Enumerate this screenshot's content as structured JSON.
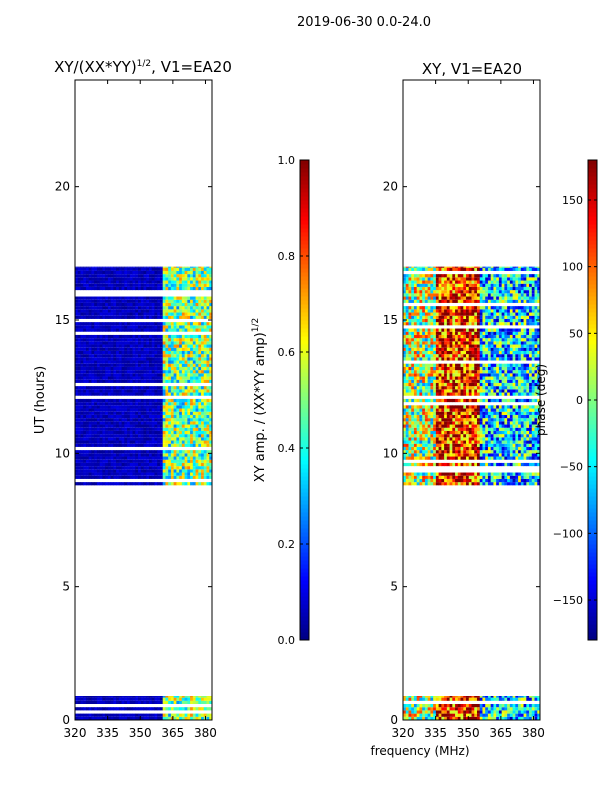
{
  "suptitle": "2019-06-30 0.0-24.0",
  "colors": {
    "axis": "#000000",
    "background": "#ffffff"
  },
  "chart_data": [
    {
      "type": "heatmap",
      "title_main": "XY/(XX*YY)",
      "title_sup": "1/2",
      "title_tail": ", V1=EA20",
      "ylabel": "UT (hours)",
      "xlabel": "",
      "xlim": [
        320,
        383
      ],
      "ylim": [
        0,
        24
      ],
      "xticks": [
        320,
        335,
        350,
        365,
        380
      ],
      "xtick_labels": [
        "320",
        "335",
        "350",
        "365",
        "380"
      ],
      "yticks": [
        0,
        5,
        10,
        15,
        20
      ],
      "ytick_labels": [
        "0",
        "5",
        "10",
        "15",
        "20"
      ],
      "colormap": "jet",
      "data_blocks_ut": [
        [
          0.0,
          0.9
        ],
        [
          8.8,
          17.0
        ]
      ],
      "colorbar": {
        "label_main": "XY amp. / (XX*YY amp)",
        "label_sup": "1/2",
        "range": [
          0.0,
          1.0
        ],
        "ticks": [
          0.0,
          0.2,
          0.4,
          0.6,
          0.8,
          1.0
        ],
        "tick_labels": [
          "0.0",
          "0.2",
          "0.4",
          "0.6",
          "0.8",
          "1.0"
        ]
      }
    },
    {
      "type": "heatmap",
      "title_main": "XY, V1=EA20",
      "title_sup": "",
      "title_tail": "",
      "ylabel": "",
      "xlabel": "frequency (MHz)",
      "xlim": [
        320,
        383
      ],
      "ylim": [
        0,
        24
      ],
      "xticks": [
        320,
        335,
        350,
        365,
        380
      ],
      "xtick_labels": [
        "320",
        "335",
        "350",
        "365",
        "380"
      ],
      "yticks": [
        0,
        5,
        10,
        15,
        20
      ],
      "ytick_labels": [
        "0",
        "5",
        "10",
        "15",
        "20"
      ],
      "colormap": "jet",
      "data_blocks_ut": [
        [
          0.0,
          0.9
        ],
        [
          8.8,
          17.0
        ]
      ],
      "colorbar": {
        "label_main": "phase (deg)",
        "label_sup": "",
        "range": [
          -180,
          180
        ],
        "ticks": [
          -150,
          -100,
          -50,
          0,
          50,
          100,
          150
        ],
        "tick_labels": [
          "−150",
          "−100",
          "−50",
          "0",
          "50",
          "100",
          "150"
        ]
      }
    }
  ]
}
